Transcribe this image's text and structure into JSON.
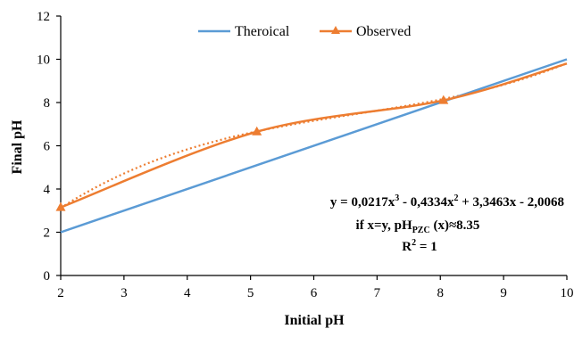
{
  "chart_data": {
    "type": "line",
    "xlabel": "Initial pH",
    "ylabel": "Final pH",
    "xlim": [
      2,
      10
    ],
    "ylim": [
      0,
      12
    ],
    "xticks": [
      2,
      3,
      4,
      5,
      6,
      7,
      8,
      9,
      10
    ],
    "yticks": [
      0,
      2,
      4,
      6,
      8,
      10,
      12
    ],
    "grid": false,
    "legend_position": "top-center",
    "series": [
      {
        "name": "Theroical",
        "color": "#5b9bd5",
        "marker": "none",
        "x": [
          2,
          10
        ],
        "y": [
          2,
          10
        ]
      },
      {
        "name": "Observed",
        "color": "#ed7d31",
        "marker": "triangle",
        "x": [
          2,
          5.1,
          8.05,
          10
        ],
        "y": [
          3.15,
          6.65,
          8.1,
          9.8
        ]
      }
    ],
    "trendline": {
      "series": "Observed",
      "type": "polynomial",
      "degree": 3,
      "coefficients": [
        0.0217,
        -0.4334,
        3.3463,
        -2.0068
      ],
      "color": "#ed7d31",
      "style": "dotted"
    },
    "annotations": {
      "equation_prefix": "y = 0,0217x",
      "equation_exp1": "3",
      "equation_mid": " - 0,4334x",
      "equation_exp2": "2",
      "equation_suffix": " + 3,3463x - 2,0068",
      "condition_prefix": "if x=y, pH",
      "condition_sub": "PZC",
      "condition_suffix": " (x)≈8.35",
      "r2_prefix": "R",
      "r2_exp": "2",
      "r2_suffix": " = 1"
    }
  }
}
